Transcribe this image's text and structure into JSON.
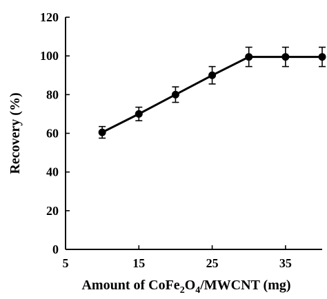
{
  "chart_data": {
    "type": "line",
    "xlabel": "Amount of CoFe2O4/MWCNT (mg)",
    "xlabel_parts": [
      "Amount of CoFe",
      "2",
      "O",
      "4",
      "/MWCNT (mg)"
    ],
    "ylabel": "Recovery (%)",
    "xlim": [
      5,
      40
    ],
    "ylim": [
      0,
      120
    ],
    "x_ticks": [
      5,
      15,
      25,
      35
    ],
    "y_ticks": [
      0,
      20,
      40,
      60,
      80,
      100,
      120
    ],
    "grid": false,
    "series": [
      {
        "x": [
          10,
          15,
          20,
          25,
          30,
          35,
          40
        ],
        "y": [
          60.5,
          70,
          80,
          90,
          99.5,
          99.5,
          99.5
        ],
        "error": [
          3,
          3.5,
          4,
          4.5,
          5,
          5,
          5
        ]
      }
    ]
  }
}
